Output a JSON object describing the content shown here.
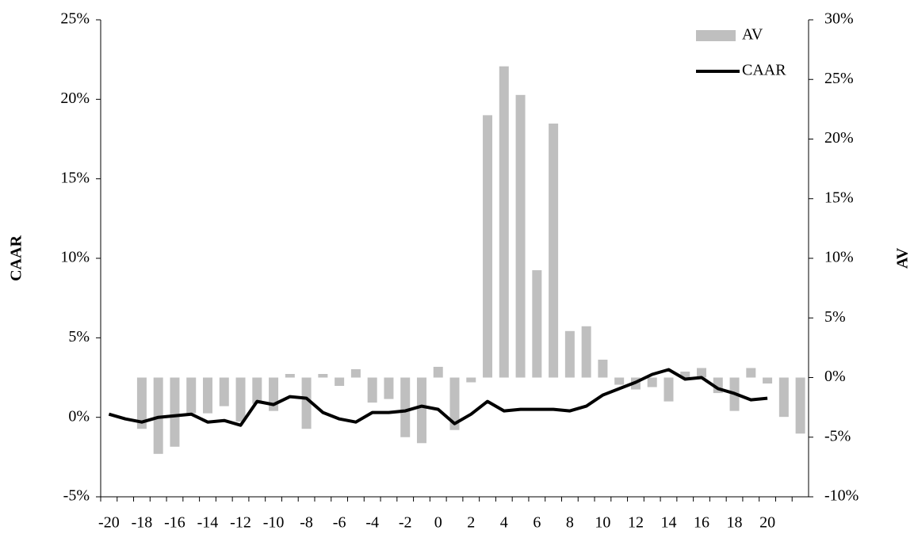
{
  "chart_data": {
    "type": "bar-line",
    "categories": [
      "-20",
      null,
      "-18",
      null,
      "-16",
      null,
      "-14",
      null,
      "-12",
      null,
      "-10",
      null,
      "-8",
      null,
      "-6",
      null,
      "-4",
      null,
      "-2",
      null,
      "0",
      null,
      "2",
      null,
      "4",
      null,
      "6",
      null,
      "8",
      null,
      "10",
      null,
      "12",
      null,
      "14",
      null,
      "16",
      null,
      "18",
      null,
      "20",
      null,
      null
    ],
    "y_label": "CAAR",
    "y2_label": "AV",
    "ylim": [
      -5,
      25
    ],
    "yticks": [
      {
        "value": -5,
        "label": "-5%"
      },
      {
        "value": 0,
        "label": "0%"
      },
      {
        "value": 5,
        "label": "5%"
      },
      {
        "value": 10,
        "label": "10%"
      },
      {
        "value": 15,
        "label": "15%"
      },
      {
        "value": 20,
        "label": "20%"
      },
      {
        "value": 25,
        "label": "25%"
      }
    ],
    "y2lim": [
      -10,
      30
    ],
    "y2ticks": [
      {
        "value": -10,
        "label": "-10%"
      },
      {
        "value": -5,
        "label": "-5%"
      },
      {
        "value": 0,
        "label": "0%"
      },
      {
        "value": 5,
        "label": "5%"
      },
      {
        "value": 10,
        "label": "10%"
      },
      {
        "value": 15,
        "label": "15%"
      },
      {
        "value": 20,
        "label": "20%"
      },
      {
        "value": 25,
        "label": "25%"
      },
      {
        "value": 30,
        "label": "30%"
      }
    ],
    "legend": "top-right",
    "series": [
      {
        "name": "AV",
        "type": "bar",
        "axis": "y2",
        "color": "#bfbfbf",
        "values": [
          null,
          null,
          -4.3,
          -6.4,
          -5.8,
          -3.0,
          -3.0,
          -2.4,
          -3.7,
          -2.2,
          -2.8,
          0.3,
          -4.3,
          0.3,
          -0.7,
          0.7,
          -2.1,
          -1.8,
          -5.0,
          -5.5,
          0.9,
          -4.4,
          -0.4,
          22.0,
          26.1,
          23.7,
          9.0,
          21.3,
          3.9,
          4.3,
          1.5,
          -0.6,
          -1.0,
          -0.8,
          -2.0,
          0.5,
          0.8,
          -1.3,
          -2.8,
          0.8,
          -0.5,
          -3.3,
          -4.7
        ]
      },
      {
        "name": "CAAR",
        "type": "line",
        "color": "#000000",
        "values": [
          0.2,
          -0.1,
          -0.3,
          0.0,
          0.1,
          0.2,
          -0.3,
          -0.2,
          -0.5,
          1.0,
          0.8,
          1.3,
          1.2,
          0.3,
          -0.1,
          -0.3,
          0.3,
          0.3,
          0.4,
          0.7,
          0.5,
          -0.4,
          0.2,
          1.0,
          0.4,
          0.5,
          0.5,
          0.5,
          0.4,
          0.7,
          1.4,
          1.8,
          2.2,
          2.7,
          3.0,
          2.4,
          2.5,
          1.8,
          1.5,
          1.1,
          1.2,
          null,
          null
        ]
      }
    ]
  }
}
